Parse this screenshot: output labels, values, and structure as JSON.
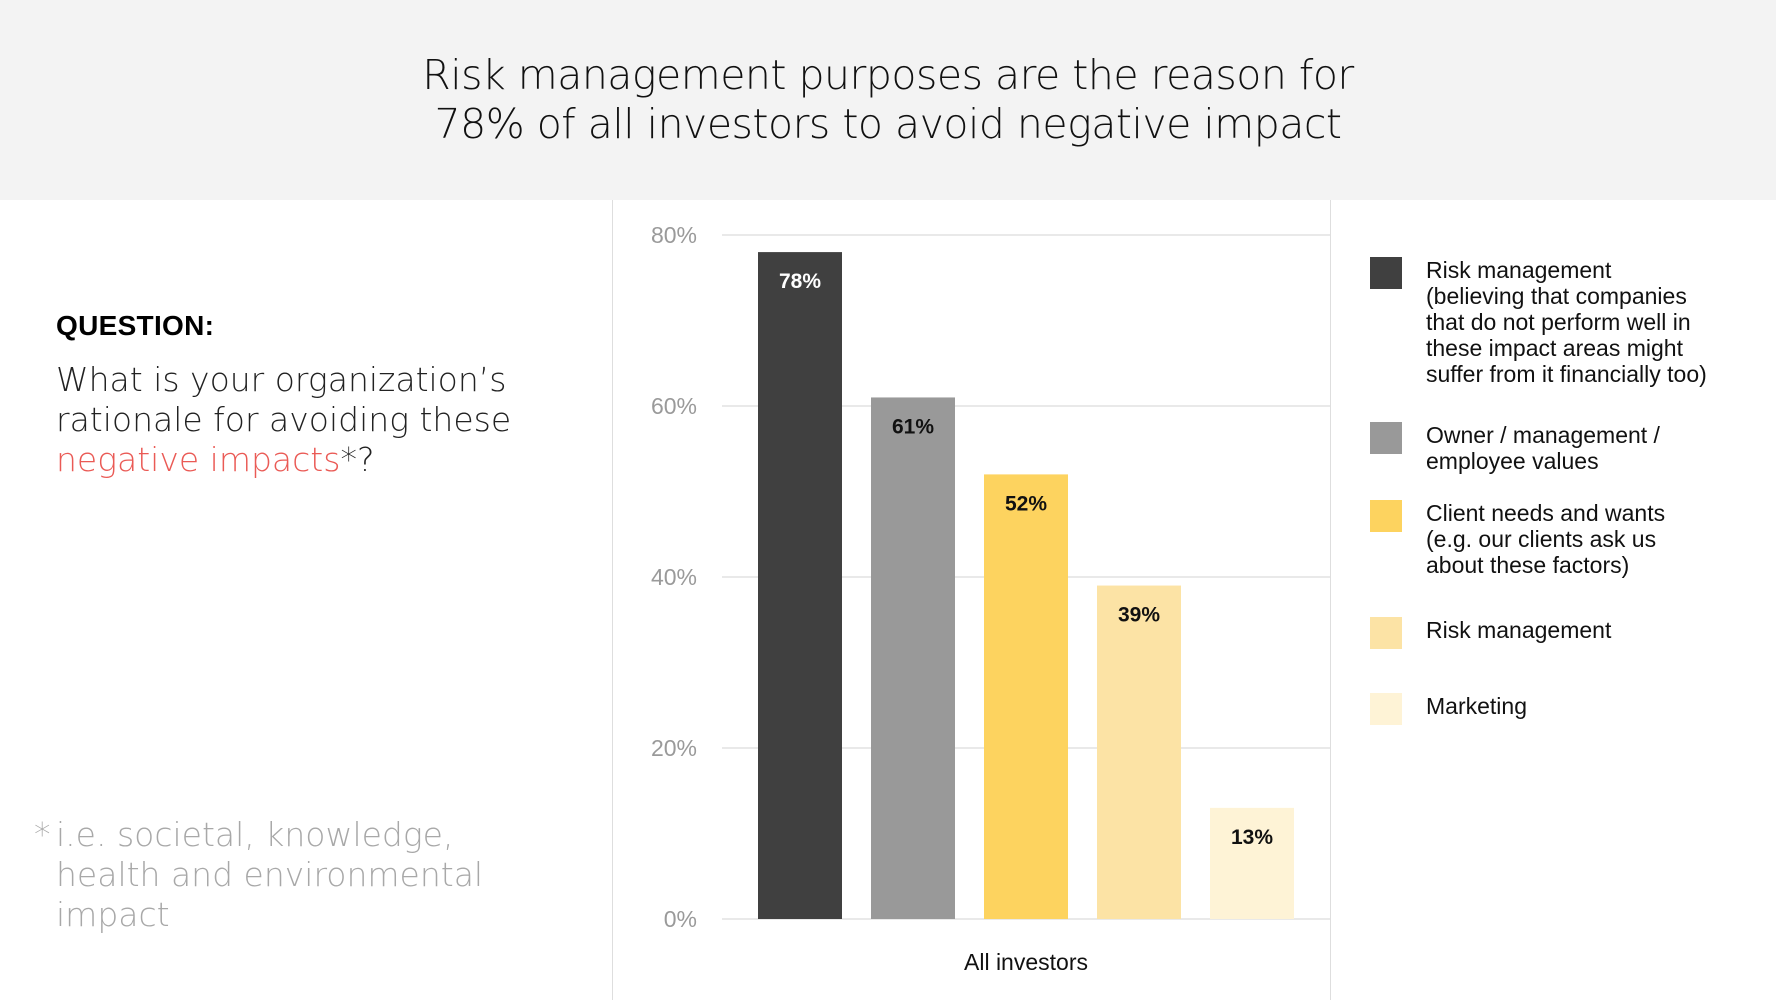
{
  "header": {
    "title": "Risk management purposes are the reason for\n78%  of all investors to avoid negative impact"
  },
  "question": {
    "label": "QUESTION:",
    "text_before": "What is your organization’s rationale for avoiding these ",
    "highlight": "negative impacts",
    "text_after": "*?",
    "highlight_color": "#ea5a55"
  },
  "footnote": {
    "star": "*",
    "text": "i.e. societal, knowledge, health and environmental impact"
  },
  "chart_data": {
    "type": "bar",
    "categories": [
      "All investors"
    ],
    "xlabel": "All investors",
    "ylabel": "",
    "ylim": [
      0,
      80
    ],
    "yticks": [
      0,
      20,
      40,
      60,
      80
    ],
    "ytick_labels": [
      "0%",
      "20%",
      "40%",
      "60%",
      "80%"
    ],
    "grid": true,
    "legend_position": "right",
    "series": [
      {
        "name": "Risk management\n(believing that companies\nthat do not perform well in\nthese impact areas might\nsuffer from it financially too)",
        "value": 78,
        "label": "78%",
        "color": "#404040",
        "label_color": "#ffffff"
      },
      {
        "name": "Owner / management /\nemployee values",
        "value": 61,
        "label": "61%",
        "color": "#999999",
        "label_color": "#111111"
      },
      {
        "name": "Client needs and wants\n(e.g. our clients ask us\nabout these factors)",
        "value": 52,
        "label": "52%",
        "color": "#fdd35f",
        "label_color": "#111111"
      },
      {
        "name": "Risk management",
        "value": 39,
        "label": "39%",
        "color": "#fce3a5",
        "label_color": "#111111"
      },
      {
        "name": "Marketing",
        "value": 13,
        "label": "13%",
        "color": "#fef3d6",
        "label_color": "#111111"
      }
    ]
  }
}
